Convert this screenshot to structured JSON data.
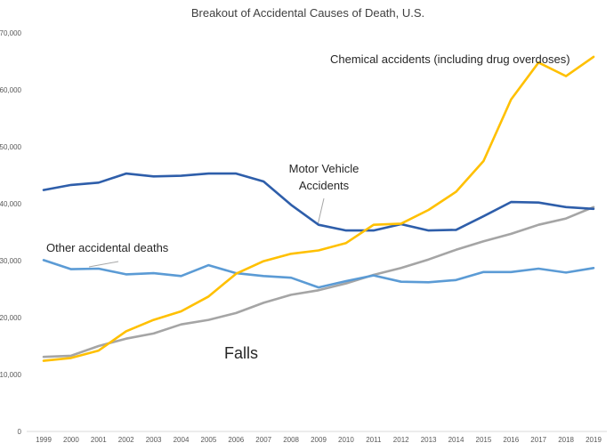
{
  "chart_data": {
    "type": "line",
    "title": "Breakout of Accidental Causes of Death, U.S.",
    "xlabel": "",
    "ylabel": "",
    "x": [
      "1999",
      "2000",
      "2001",
      "2002",
      "2003",
      "2004",
      "2005",
      "2006",
      "2007",
      "2008",
      "2009",
      "2010",
      "2011",
      "2012",
      "2013",
      "2014",
      "2015",
      "2016",
      "2017",
      "2018",
      "2019"
    ],
    "ylim": [
      0,
      70000
    ],
    "yticks": [
      0,
      10000,
      20000,
      30000,
      40000,
      50000,
      60000,
      70000
    ],
    "ytick_labels": [
      "0",
      "10,000",
      "20,000",
      "30,000",
      "40,000",
      "50,000",
      "60,000",
      "70,000"
    ],
    "grid": false,
    "legend": "none (series labelled directly on the chart)",
    "series": [
      {
        "name": "Chemical accidents (including drug overdoses)",
        "color": "#FFC000",
        "values": [
          12400,
          12900,
          14200,
          17600,
          19600,
          21100,
          23700,
          27700,
          29900,
          31200,
          31800,
          33100,
          36300,
          36500,
          38900,
          42100,
          47500,
          58300,
          64800,
          62400,
          65800
        ]
      },
      {
        "name": "Motor Vehicle Accidents",
        "color": "#2E5EAA",
        "values": [
          42400,
          43300,
          43700,
          45300,
          44800,
          44900,
          45300,
          45300,
          43900,
          39800,
          36300,
          35300,
          35300,
          36400,
          35300,
          35400,
          37800,
          40300,
          40200,
          39400,
          39100
        ]
      },
      {
        "name": "Other accidental deaths",
        "color": "#5B9BD5",
        "values": [
          30100,
          28500,
          28600,
          27600,
          27800,
          27300,
          29200,
          27800,
          27300,
          27000,
          25300,
          26400,
          27400,
          26300,
          26200,
          26600,
          28000,
          28000,
          28600,
          27900,
          28700
        ]
      },
      {
        "name": "Falls",
        "color": "#A5A5A5",
        "values": [
          13100,
          13300,
          15000,
          16300,
          17200,
          18800,
          19600,
          20800,
          22600,
          24000,
          24800,
          26000,
          27500,
          28700,
          30200,
          31900,
          33400,
          34700,
          36300,
          37400,
          39400
        ]
      }
    ],
    "annotations": [
      {
        "text": "Chemical accidents (including drug overdoses)",
        "series": 0
      },
      {
        "text": "Motor Vehicle",
        "series": 1
      },
      {
        "text": "Accidents",
        "series": 1
      },
      {
        "text": "Other accidental deaths",
        "series": 2
      },
      {
        "text": "Falls",
        "series": 3
      }
    ]
  }
}
